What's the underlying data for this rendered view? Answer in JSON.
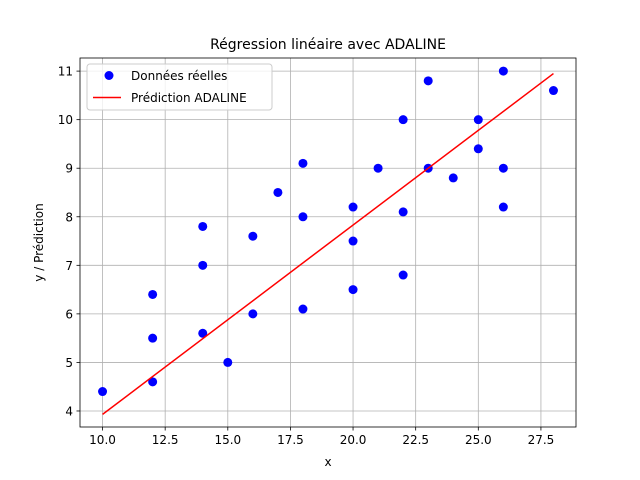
{
  "chart_data": {
    "type": "scatter",
    "title": "Régression linéaire avec ADALINE",
    "xlabel": "x",
    "ylabel": "y / Prédiction",
    "xlim": [
      9.1,
      28.9
    ],
    "ylim": [
      3.67,
      11.27
    ],
    "xticks": [
      10.0,
      12.5,
      15.0,
      17.5,
      20.0,
      22.5,
      25.0,
      27.5
    ],
    "xtick_labels": [
      "10.0",
      "12.5",
      "15.0",
      "17.5",
      "20.0",
      "22.5",
      "25.0",
      "27.5"
    ],
    "yticks": [
      4,
      5,
      6,
      7,
      8,
      9,
      10,
      11
    ],
    "ytick_labels": [
      "4",
      "5",
      "6",
      "7",
      "8",
      "9",
      "10",
      "11"
    ],
    "grid": true,
    "legend_position": "top-left",
    "series": [
      {
        "name": "Données réelles",
        "kind": "scatter",
        "color": "#0000ff",
        "points": [
          [
            10,
            4.4
          ],
          [
            12,
            4.6
          ],
          [
            12,
            5.5
          ],
          [
            12,
            6.4
          ],
          [
            14,
            5.6
          ],
          [
            14,
            7.0
          ],
          [
            14,
            7.8
          ],
          [
            15,
            5.0
          ],
          [
            16,
            6.0
          ],
          [
            16,
            7.6
          ],
          [
            17,
            8.5
          ],
          [
            18,
            6.1
          ],
          [
            18,
            8.0
          ],
          [
            18,
            9.1
          ],
          [
            20,
            6.5
          ],
          [
            20,
            7.5
          ],
          [
            20,
            8.2
          ],
          [
            21,
            9.0
          ],
          [
            22,
            6.8
          ],
          [
            22,
            8.1
          ],
          [
            22,
            10.0
          ],
          [
            23,
            9.0
          ],
          [
            23,
            10.8
          ],
          [
            24,
            8.8
          ],
          [
            25,
            9.4
          ],
          [
            25,
            10.0
          ],
          [
            26,
            8.2
          ],
          [
            26,
            9.0
          ],
          [
            26,
            11.0
          ],
          [
            28,
            10.6
          ]
        ]
      },
      {
        "name": "Prédiction ADALINE",
        "kind": "line",
        "color": "#ff0000",
        "points": [
          [
            10,
            3.93
          ],
          [
            28,
            10.95
          ]
        ]
      }
    ]
  }
}
